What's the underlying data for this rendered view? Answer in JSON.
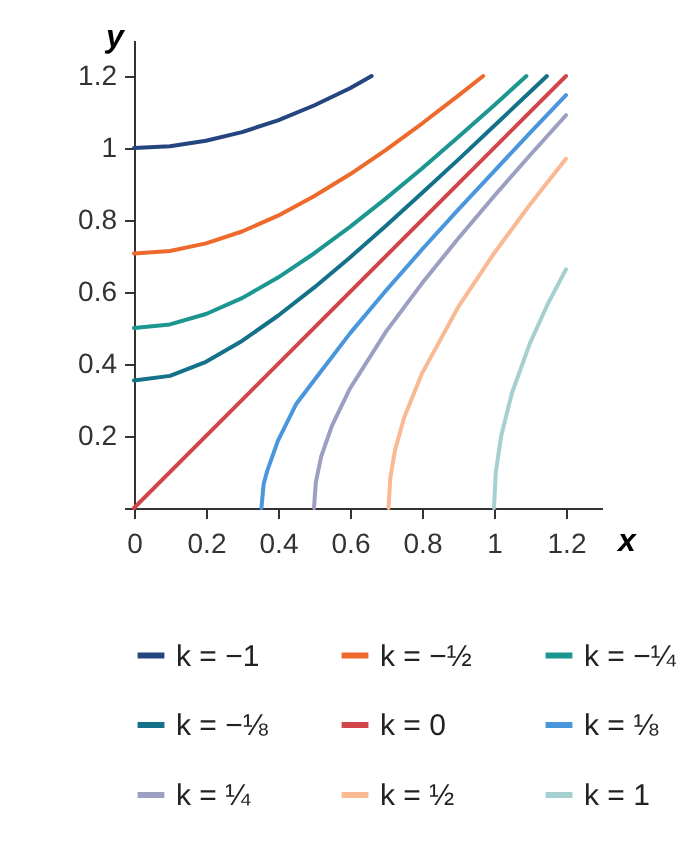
{
  "chart_data": {
    "type": "line",
    "xlabel": "x",
    "ylabel": "y",
    "xlim": [
      0,
      1.3
    ],
    "ylim": [
      0,
      1.3
    ],
    "xticks": [
      {
        "value": 0,
        "label": "0"
      },
      0.2,
      0.4,
      0.6,
      0.8,
      {
        "value": 1,
        "label": "1"
      },
      1.2
    ],
    "yticks": [
      {
        "value": 0,
        "label": null
      },
      0.2,
      0.4,
      0.6,
      0.8,
      {
        "value": 1,
        "label": "1"
      },
      1.2
    ],
    "grid": false,
    "legend": "bottom",
    "line_style": "solid",
    "marker": "none",
    "series": [
      {
        "name": "k = −1",
        "color": "#24457f",
        "x": [
          0,
          0.1,
          0.2,
          0.3,
          0.4,
          0.5,
          0.6,
          0.66
        ],
        "values": [
          1,
          1.005,
          1.02,
          1.044,
          1.077,
          1.118,
          1.166,
          1.2
        ]
      },
      {
        "name": "k = −½",
        "color": "#ee6a2c",
        "x": [
          0,
          0.1,
          0.2,
          0.3,
          0.4,
          0.5,
          0.6,
          0.7,
          0.8,
          0.9,
          0.97
        ],
        "values": [
          0.707,
          0.714,
          0.735,
          0.768,
          0.812,
          0.866,
          0.927,
          0.995,
          1.068,
          1.145,
          1.2
        ]
      },
      {
        "name": "k = −¼",
        "color": "#1b9690",
        "x": [
          0,
          0.1,
          0.2,
          0.3,
          0.4,
          0.5,
          0.6,
          0.7,
          0.8,
          0.9,
          1,
          1.09
        ],
        "values": [
          0.5,
          0.51,
          0.539,
          0.583,
          0.64,
          0.707,
          0.781,
          0.86,
          0.943,
          1.03,
          1.118,
          1.2
        ]
      },
      {
        "name": "k = −⅛",
        "color": "#13718a",
        "x": [
          0,
          0.1,
          0.2,
          0.3,
          0.4,
          0.5,
          0.6,
          0.7,
          0.8,
          0.9,
          1,
          1.147
        ],
        "values": [
          0.354,
          0.367,
          0.406,
          0.464,
          0.534,
          0.612,
          0.696,
          0.784,
          0.875,
          0.967,
          1.061,
          1.2
        ]
      },
      {
        "name": "k = 0",
        "color": "#d1464a",
        "x": [
          0,
          1.2
        ],
        "values": [
          0,
          1.2
        ]
      },
      {
        "name": "k = ⅛",
        "color": "#4a96dd",
        "x": [
          0.354,
          0.36,
          0.37,
          0.4,
          0.45,
          0.5,
          0.6,
          0.7,
          0.8,
          0.9,
          1,
          1.1,
          1.2
        ],
        "values": [
          0,
          0.066,
          0.103,
          0.187,
          0.288,
          0.354,
          0.485,
          0.604,
          0.718,
          0.828,
          0.935,
          1.042,
          1.147
        ]
      },
      {
        "name": "k = ¼",
        "color": "#9c9fc2",
        "x": [
          0.5,
          0.505,
          0.52,
          0.55,
          0.6,
          0.7,
          0.8,
          0.9,
          1,
          1.1,
          1.2
        ],
        "values": [
          0,
          0.071,
          0.143,
          0.229,
          0.332,
          0.49,
          0.624,
          0.748,
          0.866,
          0.98,
          1.091
        ]
      },
      {
        "name": "k = ½",
        "color": "#f9b993",
        "x": [
          0.707,
          0.712,
          0.725,
          0.75,
          0.8,
          0.9,
          1,
          1.1,
          1.2
        ],
        "values": [
          0,
          0.084,
          0.16,
          0.25,
          0.374,
          0.557,
          0.707,
          0.843,
          0.97
        ]
      },
      {
        "name": "k = 1",
        "color": "#a6d0cf",
        "x": [
          1,
          1.005,
          1.02,
          1.05,
          1.1,
          1.15,
          1.2
        ],
        "values": [
          0,
          0.1,
          0.201,
          0.32,
          0.458,
          0.568,
          0.663
        ]
      }
    ]
  }
}
